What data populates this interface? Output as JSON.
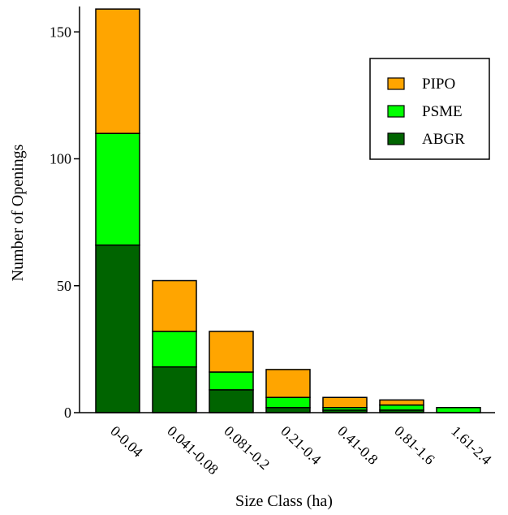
{
  "chart_data": {
    "type": "bar",
    "stacked": true,
    "xlabel": "Size Class (ha)",
    "ylabel": "Number of Openings",
    "ylim": [
      0,
      160
    ],
    "yticks": [
      0,
      50,
      100,
      150
    ],
    "categories": [
      "0-0.04",
      "0.041-0.08",
      "0.081-0.2",
      "0.21-0.4",
      "0.41-0.8",
      "0.81-1.6",
      "1.61-2.4"
    ],
    "series": [
      {
        "name": "ABGR",
        "color": "#006400",
        "values": [
          66,
          18,
          9,
          2,
          1,
          1,
          0
        ]
      },
      {
        "name": "PSME",
        "color": "#00ff00",
        "values": [
          44,
          14,
          7,
          4,
          1,
          2,
          2
        ]
      },
      {
        "name": "PIPO",
        "color": "#ffa500",
        "values": [
          49,
          20,
          16,
          11,
          4,
          2,
          0
        ]
      }
    ],
    "legend": {
      "position": "top-right",
      "order": [
        "PIPO",
        "PSME",
        "ABGR"
      ]
    },
    "grid": false
  }
}
